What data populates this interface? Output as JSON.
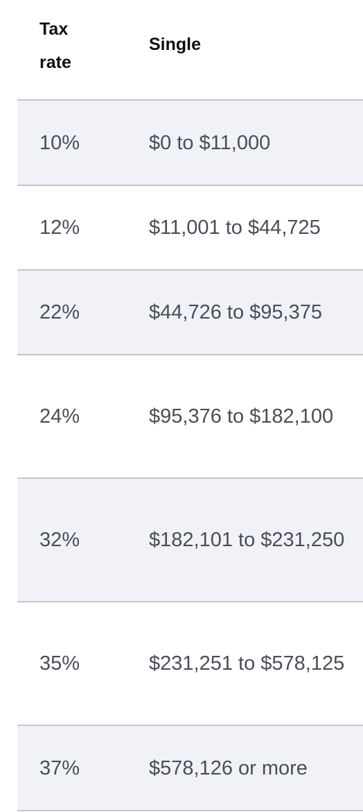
{
  "table": {
    "headers": {
      "rate": "Tax rate",
      "single": "Single"
    },
    "rows": [
      {
        "rate": "10%",
        "single": "$0 to $11,000"
      },
      {
        "rate": "12%",
        "single": "$11,001 to $44,725"
      },
      {
        "rate": "22%",
        "single": "$44,726 to $95,375"
      },
      {
        "rate": "24%",
        "single": "$95,376 to $182,100"
      },
      {
        "rate": "32%",
        "single": "$182,101 to $231,250"
      },
      {
        "rate": "35%",
        "single": "$231,251 to $578,125"
      },
      {
        "rate": "37%",
        "single": "$578,126 or more"
      }
    ]
  }
}
